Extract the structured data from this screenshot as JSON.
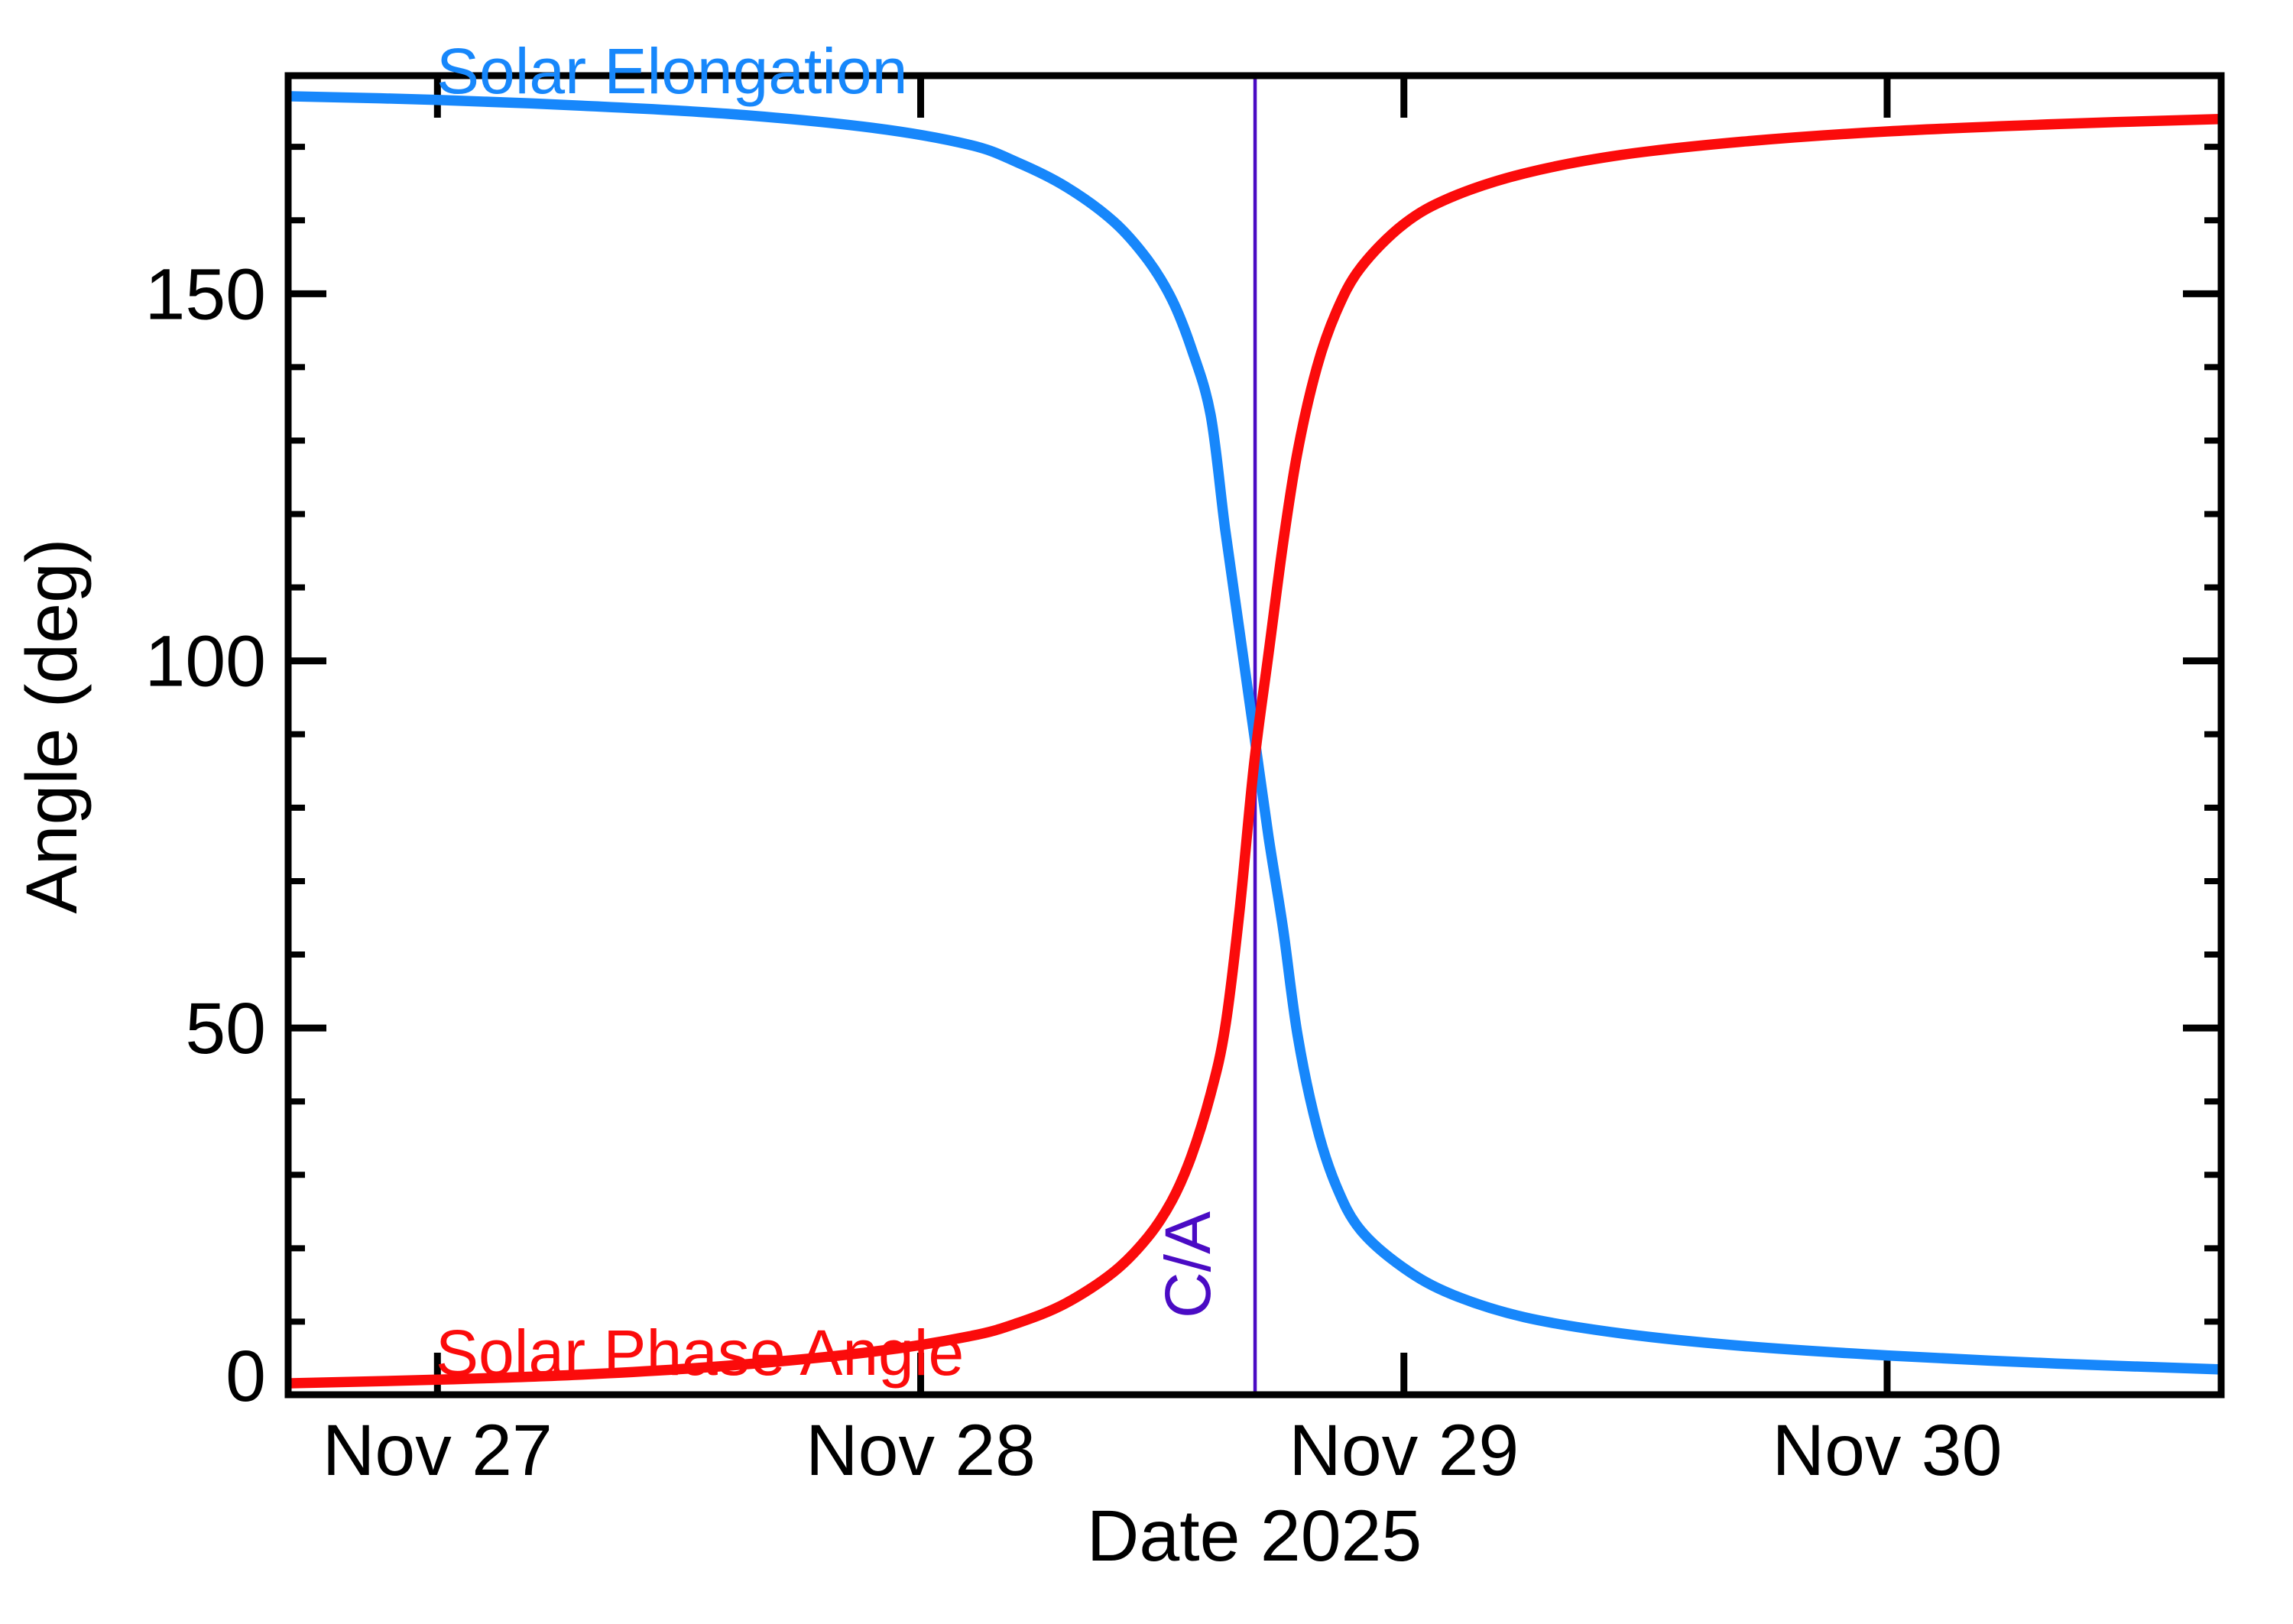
{
  "chart_data": {
    "type": "line",
    "title": "",
    "xlabel": "Date 2025",
    "ylabel": "Angle (deg)",
    "grid": "off",
    "background": "#ffffff",
    "axis_color": "#000000",
    "x_axis": {
      "kind": "date",
      "range_days": [
        26.691,
        30.691
      ],
      "major_tick_days": [
        27,
        28,
        29,
        30
      ],
      "tick_labels": [
        "Nov 27",
        "Nov 28",
        "Nov 29",
        "Nov 30"
      ],
      "minor_ticks": "none"
    },
    "y_axis": {
      "range": [
        0,
        179.7
      ],
      "major_tick_values": [
        50,
        100,
        150
      ],
      "major_tick_labels": [
        "0",
        "50",
        "100",
        "150"
      ],
      "label_values": [
        0,
        50,
        100,
        150
      ],
      "minor_tick_step": 10
    },
    "annotation": {
      "label": "C/A",
      "day": 28.692,
      "color": "#4A0BC4"
    },
    "series": [
      {
        "name": "Solar Elongation",
        "color": "#1787FB",
        "points": [
          [
            26.69,
            176.9
          ],
          [
            27.0,
            176.4
          ],
          [
            27.3,
            175.6
          ],
          [
            27.6,
            174.5
          ],
          [
            27.9,
            172.6
          ],
          [
            28.1,
            170.3
          ],
          [
            28.2,
            167.9
          ],
          [
            28.3,
            164.6
          ],
          [
            28.4,
            159.8
          ],
          [
            28.47,
            154.6
          ],
          [
            28.52,
            149.2
          ],
          [
            28.56,
            142.6
          ],
          [
            28.6,
            133.5
          ],
          [
            28.63,
            118.0
          ],
          [
            28.66,
            104.0
          ],
          [
            28.69,
            90.0
          ],
          [
            28.72,
            76.0
          ],
          [
            28.75,
            63.5
          ],
          [
            28.78,
            49.0
          ],
          [
            28.82,
            36.5
          ],
          [
            28.86,
            28.5
          ],
          [
            28.91,
            22.5
          ],
          [
            29.0,
            17.3
          ],
          [
            29.1,
            13.7
          ],
          [
            29.25,
            10.6
          ],
          [
            29.45,
            8.4
          ],
          [
            29.7,
            6.7
          ],
          [
            30.0,
            5.4
          ],
          [
            30.35,
            4.3
          ],
          [
            30.69,
            3.5
          ]
        ]
      },
      {
        "name": "Solar Phase Angle",
        "color": "#FB0B0B",
        "points": [
          [
            26.69,
            1.6
          ],
          [
            27.0,
            2.1
          ],
          [
            27.3,
            2.8
          ],
          [
            27.6,
            4.0
          ],
          [
            27.9,
            5.9
          ],
          [
            28.1,
            8.0
          ],
          [
            28.2,
            9.8
          ],
          [
            28.3,
            12.5
          ],
          [
            28.4,
            16.8
          ],
          [
            28.47,
            21.5
          ],
          [
            28.52,
            26.5
          ],
          [
            28.56,
            32.5
          ],
          [
            28.6,
            41.0
          ],
          [
            28.63,
            50.0
          ],
          [
            28.66,
            66.0
          ],
          [
            28.69,
            86.0
          ],
          [
            28.72,
            101.0
          ],
          [
            28.75,
            116.0
          ],
          [
            28.78,
            128.5
          ],
          [
            28.82,
            140.0
          ],
          [
            28.86,
            147.5
          ],
          [
            28.91,
            153.5
          ],
          [
            29.0,
            159.5
          ],
          [
            29.1,
            163.2
          ],
          [
            29.25,
            166.4
          ],
          [
            29.45,
            168.9
          ],
          [
            29.7,
            170.7
          ],
          [
            30.0,
            172.1
          ],
          [
            30.35,
            173.1
          ],
          [
            30.69,
            173.8
          ]
        ]
      }
    ]
  }
}
